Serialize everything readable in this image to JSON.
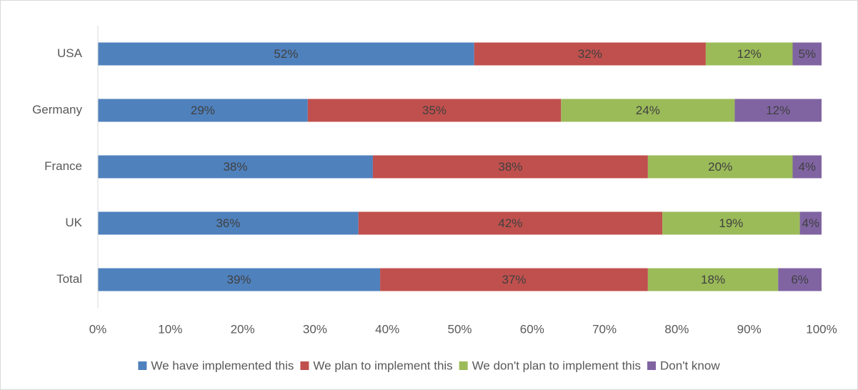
{
  "chart_data": {
    "type": "bar",
    "orientation": "horizontal",
    "stacked": true,
    "categories": [
      "USA",
      "Germany",
      "France",
      "UK",
      "Total"
    ],
    "series": [
      {
        "name": "We have implemented this",
        "color": "#4F81BD",
        "values": [
          52,
          29,
          38,
          36,
          39
        ],
        "labels": [
          "52%",
          "29%",
          "38%",
          "36%",
          "39%"
        ]
      },
      {
        "name": "We plan to implement this",
        "color": "#C0504D",
        "values": [
          32,
          35,
          38,
          42,
          37
        ],
        "labels": [
          "32%",
          "35%",
          "38%",
          "42%",
          "37%"
        ]
      },
      {
        "name": "We don't plan to implement this",
        "color": "#9BBB59",
        "values": [
          12,
          24,
          20,
          19,
          18
        ],
        "labels": [
          "12%",
          "24%",
          "20%",
          "19%",
          "18%"
        ]
      },
      {
        "name": "Don't know",
        "color": "#8064A2",
        "values": [
          5,
          12,
          4,
          4,
          6
        ],
        "labels": [
          "5%",
          "12%",
          "4%",
          "4%",
          "6%"
        ]
      }
    ],
    "xlim": [
      0,
      100
    ],
    "xticks": [
      "0%",
      "10%",
      "20%",
      "30%",
      "40%",
      "50%",
      "60%",
      "70%",
      "80%",
      "90%",
      "100%"
    ],
    "title": "",
    "xlabel": "",
    "ylabel": "",
    "grid": false,
    "legend_position": "bottom"
  }
}
